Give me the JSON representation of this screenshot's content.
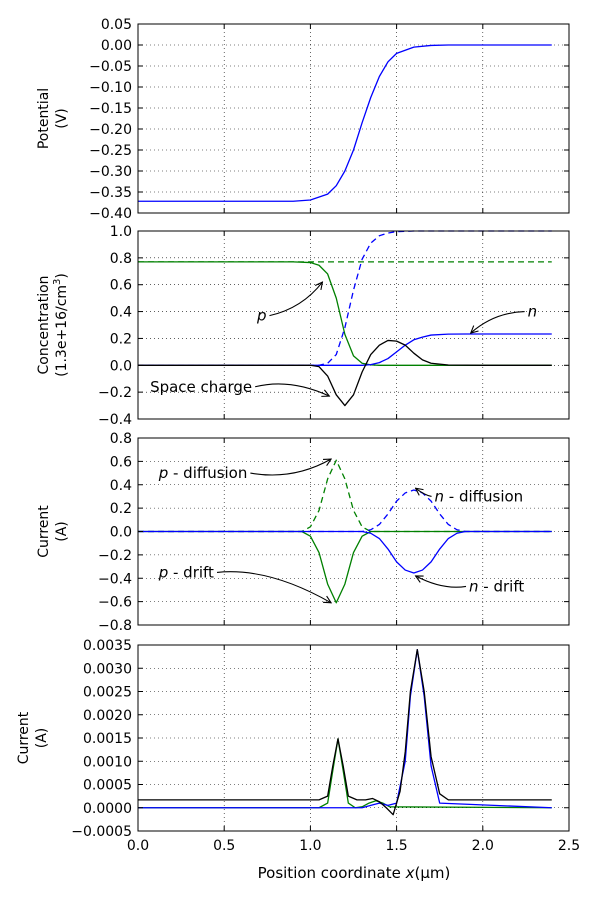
{
  "figure": {
    "xlabel_prefix": "Position coordinate ",
    "xlabel_var": "x",
    "xlabel_unit": "(μm)",
    "xlim": [
      0.0,
      2.5
    ],
    "xticks": [
      0.0,
      0.5,
      1.0,
      1.5,
      2.0,
      2.5
    ],
    "xtick_labels": [
      "0.0",
      "0.5",
      "1.0",
      "1.5",
      "2.0",
      "2.5"
    ]
  },
  "chart_data": [
    {
      "type": "line",
      "ylabel_lines": [
        "Potential",
        "(V)"
      ],
      "ylim": [
        -0.4,
        0.05
      ],
      "yticks": [
        0.05,
        0.0,
        -0.05,
        -0.1,
        -0.15,
        -0.2,
        -0.25,
        -0.3,
        -0.35,
        -0.4
      ],
      "ytick_labels": [
        "0.05",
        "0.00",
        "−0.05",
        "−0.10",
        "−0.15",
        "−0.20",
        "−0.25",
        "−0.30",
        "−0.35",
        "−0.40"
      ],
      "grid": true,
      "series": [
        {
          "color": "#0000ff",
          "dash": "solid",
          "x": [
            0,
            0.9,
            1.0,
            1.1,
            1.15,
            1.2,
            1.25,
            1.3,
            1.35,
            1.4,
            1.45,
            1.5,
            1.6,
            1.7,
            1.8,
            2.0,
            2.4
          ],
          "y": [
            -0.372,
            -0.372,
            -0.369,
            -0.355,
            -0.335,
            -0.3,
            -0.25,
            -0.185,
            -0.125,
            -0.075,
            -0.04,
            -0.02,
            -0.005,
            -0.001,
            0,
            0,
            0
          ]
        }
      ]
    },
    {
      "type": "line",
      "ylabel_lines": [
        "Concentration",
        "(1.3e+16/cm³)"
      ],
      "ylim": [
        -0.4,
        1.0
      ],
      "yticks": [
        1.0,
        0.8,
        0.6,
        0.4,
        0.2,
        0.0,
        -0.2,
        -0.4
      ],
      "ytick_labels": [
        "1.0",
        "0.8",
        "0.6",
        "0.4",
        "0.2",
        "0.0",
        "−0.2",
        "−0.4"
      ],
      "grid": true,
      "series": [
        {
          "color": "#008000",
          "dash": "solid",
          "x": [
            0,
            0.9,
            1.0,
            1.05,
            1.1,
            1.15,
            1.2,
            1.25,
            1.3,
            1.35,
            1.4,
            1.5,
            2.4
          ],
          "y": [
            0.77,
            0.77,
            0.765,
            0.745,
            0.68,
            0.5,
            0.23,
            0.07,
            0.015,
            0.003,
            0,
            0,
            0
          ]
        },
        {
          "color": "#008000",
          "dash": "dashed",
          "x": [
            0,
            2.4
          ],
          "y": [
            0.77,
            0.77
          ]
        },
        {
          "color": "#0000ff",
          "dash": "dashed",
          "x": [
            0,
            1.05,
            1.1,
            1.15,
            1.2,
            1.25,
            1.3,
            1.35,
            1.4,
            1.45,
            1.5,
            1.6,
            1.7,
            2.4
          ],
          "y": [
            0,
            0,
            0.015,
            0.08,
            0.28,
            0.56,
            0.79,
            0.91,
            0.965,
            0.985,
            0.995,
            1.0,
            1.0,
            1.0
          ]
        },
        {
          "color": "#0000ff",
          "dash": "solid",
          "x": [
            0,
            1.3,
            1.35,
            1.4,
            1.45,
            1.5,
            1.55,
            1.6,
            1.65,
            1.7,
            1.8,
            1.9,
            2.0,
            2.4
          ],
          "y": [
            0,
            0,
            0.005,
            0.02,
            0.05,
            0.1,
            0.15,
            0.19,
            0.21,
            0.225,
            0.232,
            0.233,
            0.233,
            0.233
          ]
        },
        {
          "color": "#000000",
          "dash": "solid",
          "x": [
            0,
            1.0,
            1.05,
            1.1,
            1.15,
            1.2,
            1.25,
            1.3,
            1.35,
            1.4,
            1.45,
            1.5,
            1.55,
            1.6,
            1.65,
            1.7,
            1.8,
            2.0,
            2.4
          ],
          "y": [
            0,
            0,
            -0.01,
            -0.08,
            -0.22,
            -0.3,
            -0.22,
            -0.05,
            0.08,
            0.15,
            0.185,
            0.18,
            0.15,
            0.09,
            0.04,
            0.015,
            0.002,
            0,
            0
          ]
        }
      ],
      "annotations": [
        {
          "label": "p",
          "italic": true,
          "text_at": [
            0.69,
            0.37
          ],
          "arrow_to": [
            1.07,
            0.62
          ]
        },
        {
          "label": "n",
          "italic": true,
          "text_at": [
            2.26,
            0.4
          ],
          "arrow_to": [
            1.93,
            0.24
          ]
        },
        {
          "label": "Space charge",
          "italic": false,
          "text_at": [
            0.07,
            -0.16
          ],
          "arrow_to": [
            1.11,
            -0.23
          ]
        }
      ]
    },
    {
      "type": "line",
      "ylabel_lines": [
        "Current",
        "(A)"
      ],
      "ylim": [
        -0.8,
        0.8
      ],
      "yticks": [
        0.8,
        0.6,
        0.4,
        0.2,
        0.0,
        -0.2,
        -0.4,
        -0.6,
        -0.8
      ],
      "ytick_labels": [
        "0.8",
        "0.6",
        "0.4",
        "0.2",
        "0.0",
        "−0.2",
        "−0.4",
        "−0.6",
        "−0.8"
      ],
      "grid": true,
      "series": [
        {
          "color": "#008000",
          "dash": "dashed",
          "x": [
            0,
            0.95,
            1.0,
            1.05,
            1.1,
            1.15,
            1.2,
            1.25,
            1.3,
            1.35,
            2.4
          ],
          "y": [
            0,
            0,
            0.04,
            0.18,
            0.45,
            0.61,
            0.45,
            0.18,
            0.04,
            0,
            0
          ]
        },
        {
          "color": "#008000",
          "dash": "solid",
          "x": [
            0,
            0.95,
            1.0,
            1.05,
            1.1,
            1.15,
            1.2,
            1.25,
            1.3,
            1.35,
            2.4
          ],
          "y": [
            0,
            0,
            -0.04,
            -0.18,
            -0.45,
            -0.61,
            -0.45,
            -0.18,
            -0.04,
            0,
            0
          ]
        },
        {
          "color": "#0000ff",
          "dash": "dashed",
          "x": [
            0,
            1.3,
            1.35,
            1.4,
            1.45,
            1.5,
            1.55,
            1.6,
            1.65,
            1.7,
            1.75,
            1.8,
            1.85,
            1.9,
            2.4
          ],
          "y": [
            0,
            0,
            0.015,
            0.06,
            0.15,
            0.26,
            0.33,
            0.355,
            0.33,
            0.26,
            0.15,
            0.06,
            0.015,
            0,
            0
          ]
        },
        {
          "color": "#0000ff",
          "dash": "solid",
          "x": [
            0,
            1.3,
            1.35,
            1.4,
            1.45,
            1.5,
            1.55,
            1.6,
            1.65,
            1.7,
            1.75,
            1.8,
            1.85,
            1.9,
            2.4
          ],
          "y": [
            0,
            0,
            -0.015,
            -0.06,
            -0.15,
            -0.26,
            -0.33,
            -0.355,
            -0.33,
            -0.26,
            -0.15,
            -0.06,
            -0.015,
            0,
            0
          ]
        }
      ],
      "annotations": [
        {
          "label": "p",
          "italic": true,
          "suffix": " - diffusion",
          "text_at": [
            0.12,
            0.5
          ],
          "arrow_to": [
            1.12,
            0.62
          ]
        },
        {
          "label": "n",
          "italic": true,
          "suffix": " - diffusion",
          "text_at": [
            1.72,
            0.3
          ],
          "arrow_to": [
            1.61,
            0.37
          ]
        },
        {
          "label": "p",
          "italic": true,
          "suffix": " - drift",
          "text_at": [
            0.12,
            -0.35
          ],
          "arrow_to": [
            1.12,
            -0.61
          ]
        },
        {
          "label": "n",
          "italic": true,
          "suffix": " - drift",
          "text_at": [
            1.92,
            -0.47
          ],
          "arrow_to": [
            1.61,
            -0.38
          ]
        }
      ]
    },
    {
      "type": "line",
      "ylabel_lines": [
        "Current",
        "(A)"
      ],
      "ylim": [
        -0.0005,
        0.0035
      ],
      "yticks": [
        0.0035,
        0.003,
        0.0025,
        0.002,
        0.0015,
        0.001,
        0.0005,
        0.0,
        -0.0005
      ],
      "ytick_labels": [
        "0.0035",
        "0.0030",
        "0.0025",
        "0.0020",
        "0.0015",
        "0.0010",
        "0.0005",
        "0.0000",
        "−0.0005"
      ],
      "grid": true,
      "series": [
        {
          "color": "#008000",
          "dash": "solid",
          "x": [
            0,
            1.05,
            1.1,
            1.13,
            1.16,
            1.19,
            1.22,
            1.26,
            1.3,
            1.34,
            1.38,
            1.42,
            1.46,
            2.4
          ],
          "y": [
            0,
            0,
            0.0001,
            0.0008,
            0.00148,
            0.0008,
            0.0001,
            0,
            2e-05,
            0.0001,
            0.00015,
            0.0001,
            2e-05,
            0
          ]
        },
        {
          "color": "#0000ff",
          "dash": "solid",
          "x": [
            0,
            1.3,
            1.35,
            1.4,
            1.45,
            1.5,
            1.55,
            1.58,
            1.62,
            1.66,
            1.7,
            1.75,
            2.4
          ],
          "y": [
            0,
            0,
            5e-05,
            0.0001,
            5e-05,
            0.0001,
            0.001,
            0.0024,
            0.0034,
            0.0024,
            0.0009,
            0.0001,
            0
          ]
        },
        {
          "color": "#000000",
          "dash": "solid",
          "x": [
            0,
            1.05,
            1.1,
            1.13,
            1.16,
            1.19,
            1.22,
            1.27,
            1.32,
            1.36,
            1.4,
            1.44,
            1.48,
            1.52,
            1.55,
            1.58,
            1.62,
            1.66,
            1.7,
            1.75,
            1.8,
            2.4
          ],
          "y": [
            0.00017,
            0.00017,
            0.00025,
            0.0009,
            0.00148,
            0.0009,
            0.00025,
            0.00017,
            0.00017,
            0.0002,
            0.00013,
            0,
            -0.00015,
            0.00035,
            0.0012,
            0.0025,
            0.0034,
            0.0025,
            0.0011,
            0.0003,
            0.00017,
            0.00017
          ]
        }
      ]
    }
  ]
}
